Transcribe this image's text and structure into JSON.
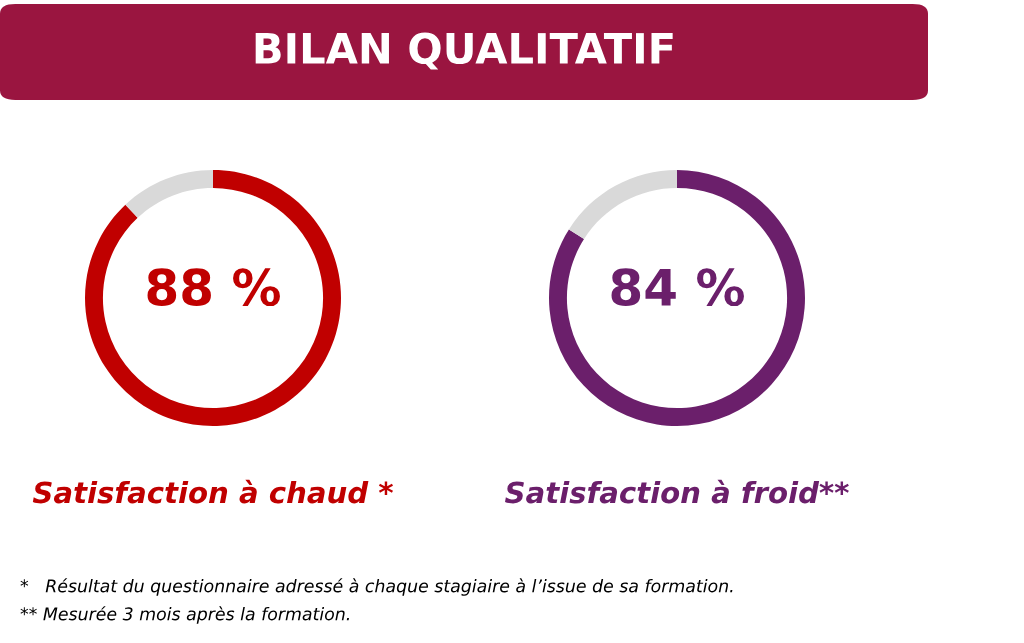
{
  "chart_data": [
    {
      "type": "donut",
      "title": "BILAN QUALITATIF",
      "categories": [
        null,
        null
      ],
      "values": [
        88,
        12
      ],
      "colors": [
        "#c00000",
        "#d9d9d9"
      ],
      "value_labels": [
        "88 %",
        null
      ],
      "xlabel": "Satisfaction à chaud *",
      "annotations": [
        "*   Résultat du questionnaire adressé à chaque stagiaire à l’issue de sa formation.",
        "** Mesurée 3 mois après la formation."
      ]
    },
    {
      "type": "donut",
      "categories": [
        null,
        null
      ],
      "values": [
        84,
        16
      ],
      "colors": [
        "#6b1f6b",
        "#d9d9d9"
      ],
      "value_labels": [
        "84 %",
        null
      ],
      "xlabel": "Satisfaction à froid**"
    }
  ]
}
